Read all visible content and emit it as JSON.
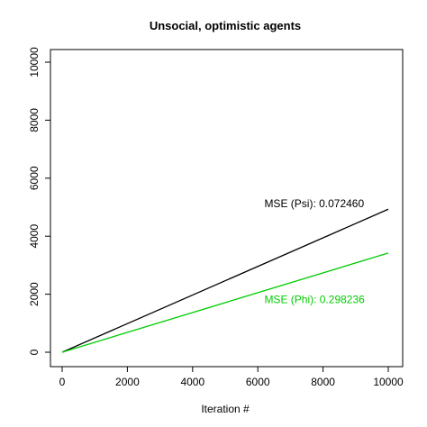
{
  "chart_data": {
    "type": "line",
    "title": "Unsocial, optimistic agents",
    "xlabel": "Iteration #",
    "ylabel": "",
    "xlim": [
      0,
      10000
    ],
    "ylim": [
      0,
      10000
    ],
    "x_ticks": [
      0,
      2000,
      4000,
      6000,
      8000,
      10000
    ],
    "y_ticks": [
      0,
      2000,
      4000,
      6000,
      8000,
      10000
    ],
    "grid": false,
    "series": [
      {
        "color": "#000000",
        "x": [
          0,
          10000
        ],
        "y": [
          0,
          4930
        ]
      },
      {
        "color": "#00cc00",
        "x": [
          0,
          10000
        ],
        "y": [
          0,
          3420
        ]
      }
    ],
    "annotations": [
      {
        "text": "MSE (Psi): 0.072460",
        "color": "#000000",
        "x": 6200,
        "y": 5000
      },
      {
        "text": "MSE (Phi): 0.298236",
        "color": "#00cc00",
        "x": 6200,
        "y": 1700
      }
    ]
  }
}
